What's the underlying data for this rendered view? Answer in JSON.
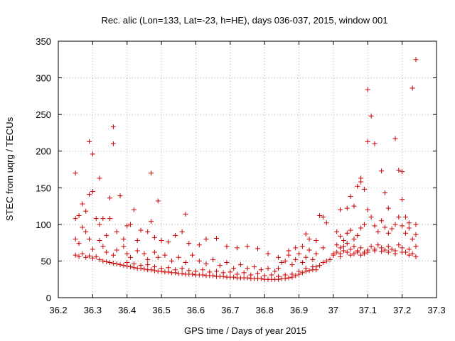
{
  "chart_data": {
    "type": "scatter",
    "title": "Rec. alic (Lon=133, Lat=-23, h=HE), days 036-037, 2015, window 001",
    "xlabel": "GPS time / Days of year 2015",
    "ylabel": "STEC from uqrg / TECUs",
    "xlim": [
      36.2,
      37.3
    ],
    "ylim": [
      0,
      350
    ],
    "xticks": [
      36.2,
      36.3,
      36.4,
      36.5,
      36.6,
      36.7,
      36.8,
      36.9,
      37.0,
      37.1,
      37.2,
      37.3
    ],
    "xtick_labels": [
      "36.2",
      "36.3",
      "36.4",
      "36.5",
      "36.6",
      "36.7",
      "36.8",
      "36.9",
      "37",
      "37.1",
      "37.2",
      "37.3"
    ],
    "yticks": [
      0,
      50,
      100,
      150,
      200,
      250,
      300,
      350
    ],
    "ytick_labels": [
      "0",
      "50",
      "100",
      "150",
      "200",
      "250",
      "300",
      "350"
    ],
    "grid": true,
    "marker": "+",
    "color": "#cc0000",
    "points": [
      [
        36.25,
        170
      ],
      [
        36.27,
        128
      ],
      [
        36.29,
        213
      ],
      [
        36.3,
        196
      ],
      [
        36.32,
        163
      ],
      [
        36.33,
        108
      ],
      [
        36.35,
        136
      ],
      [
        36.36,
        233
      ],
      [
        36.36,
        210
      ],
      [
        36.38,
        139
      ],
      [
        36.42,
        120
      ],
      [
        36.47,
        170
      ],
      [
        36.49,
        132
      ],
      [
        36.57,
        114
      ],
      [
        36.25,
        108
      ],
      [
        36.26,
        112
      ],
      [
        36.27,
        96
      ],
      [
        36.28,
        118
      ],
      [
        36.29,
        141
      ],
      [
        36.3,
        145
      ],
      [
        36.31,
        108
      ],
      [
        36.32,
        100
      ],
      [
        36.34,
        85
      ],
      [
        36.35,
        108
      ],
      [
        36.37,
        90
      ],
      [
        36.39,
        80
      ],
      [
        36.4,
        98
      ],
      [
        36.41,
        100
      ],
      [
        36.43,
        78
      ],
      [
        36.44,
        92
      ],
      [
        36.46,
        90
      ],
      [
        36.47,
        104
      ],
      [
        36.48,
        82
      ],
      [
        36.5,
        78
      ],
      [
        36.52,
        76
      ],
      [
        36.54,
        85
      ],
      [
        36.56,
        90
      ],
      [
        36.58,
        74
      ],
      [
        36.61,
        72
      ],
      [
        36.63,
        80
      ],
      [
        36.66,
        81
      ],
      [
        36.69,
        70
      ],
      [
        36.72,
        68
      ],
      [
        36.75,
        70
      ],
      [
        36.78,
        67
      ],
      [
        36.81,
        60
      ],
      [
        36.84,
        55
      ],
      [
        36.25,
        80
      ],
      [
        36.26,
        74
      ],
      [
        36.28,
        90
      ],
      [
        36.29,
        80
      ],
      [
        36.3,
        66
      ],
      [
        36.32,
        78
      ],
      [
        36.33,
        70
      ],
      [
        36.34,
        62
      ],
      [
        36.36,
        58
      ],
      [
        36.37,
        65
      ],
      [
        36.39,
        70
      ],
      [
        36.4,
        60
      ],
      [
        36.41,
        55
      ],
      [
        36.43,
        64
      ],
      [
        36.45,
        60
      ],
      [
        36.46,
        52
      ],
      [
        36.48,
        62
      ],
      [
        36.49,
        55
      ],
      [
        36.51,
        58
      ],
      [
        36.53,
        50
      ],
      [
        36.55,
        55
      ],
      [
        36.57,
        48
      ],
      [
        36.59,
        58
      ],
      [
        36.61,
        50
      ],
      [
        36.63,
        46
      ],
      [
        36.65,
        52
      ],
      [
        36.67,
        44
      ],
      [
        36.69,
        48
      ],
      [
        36.71,
        40
      ],
      [
        36.73,
        45
      ],
      [
        36.75,
        40
      ],
      [
        36.77,
        42
      ],
      [
        36.79,
        38
      ],
      [
        36.81,
        40
      ],
      [
        36.83,
        36
      ],
      [
        36.25,
        58
      ],
      [
        36.26,
        56
      ],
      [
        36.27,
        60
      ],
      [
        36.28,
        55
      ],
      [
        36.29,
        57
      ],
      [
        36.3,
        54
      ],
      [
        36.31,
        56
      ],
      [
        36.32,
        52
      ],
      [
        36.33,
        50
      ],
      [
        36.34,
        49
      ],
      [
        36.35,
        48
      ],
      [
        36.36,
        47
      ],
      [
        36.37,
        46
      ],
      [
        36.38,
        45
      ],
      [
        36.39,
        44
      ],
      [
        36.4,
        43
      ],
      [
        36.41,
        42
      ],
      [
        36.42,
        41
      ],
      [
        36.43,
        40
      ],
      [
        36.44,
        40
      ],
      [
        36.45,
        39
      ],
      [
        36.46,
        38
      ],
      [
        36.47,
        38
      ],
      [
        36.48,
        37
      ],
      [
        36.49,
        36
      ],
      [
        36.5,
        36
      ],
      [
        36.51,
        35
      ],
      [
        36.52,
        35
      ],
      [
        36.53,
        34
      ],
      [
        36.54,
        34
      ],
      [
        36.55,
        33
      ],
      [
        36.56,
        33
      ],
      [
        36.57,
        32
      ],
      [
        36.58,
        32
      ],
      [
        36.59,
        32
      ],
      [
        36.6,
        31
      ],
      [
        36.61,
        31
      ],
      [
        36.62,
        31
      ],
      [
        36.63,
        30
      ],
      [
        36.64,
        30
      ],
      [
        36.65,
        30
      ],
      [
        36.66,
        29
      ],
      [
        36.67,
        29
      ],
      [
        36.68,
        29
      ],
      [
        36.69,
        28
      ],
      [
        36.7,
        28
      ],
      [
        36.71,
        28
      ],
      [
        36.72,
        27
      ],
      [
        36.73,
        27
      ],
      [
        36.74,
        27
      ],
      [
        36.75,
        27
      ],
      [
        36.76,
        26
      ],
      [
        36.77,
        26
      ],
      [
        36.78,
        26
      ],
      [
        36.79,
        26
      ],
      [
        36.8,
        25
      ],
      [
        36.81,
        25
      ],
      [
        36.82,
        25
      ],
      [
        36.83,
        25
      ],
      [
        36.84,
        25
      ],
      [
        36.85,
        26
      ],
      [
        36.86,
        26
      ],
      [
        36.87,
        27
      ],
      [
        36.88,
        28
      ],
      [
        36.89,
        30
      ],
      [
        36.9,
        32
      ],
      [
        36.91,
        34
      ],
      [
        36.92,
        36
      ],
      [
        36.93,
        37
      ],
      [
        36.94,
        38
      ],
      [
        36.95,
        38
      ],
      [
        36.4,
        48
      ],
      [
        36.42,
        46
      ],
      [
        36.44,
        44
      ],
      [
        36.46,
        45
      ],
      [
        36.48,
        42
      ],
      [
        36.5,
        40
      ],
      [
        36.52,
        41
      ],
      [
        36.54,
        38
      ],
      [
        36.56,
        40
      ],
      [
        36.58,
        37
      ],
      [
        36.6,
        36
      ],
      [
        36.62,
        38
      ],
      [
        36.64,
        35
      ],
      [
        36.66,
        36
      ],
      [
        36.68,
        34
      ],
      [
        36.7,
        35
      ],
      [
        36.72,
        32
      ],
      [
        36.74,
        34
      ],
      [
        36.76,
        31
      ],
      [
        36.78,
        33
      ],
      [
        36.8,
        30
      ],
      [
        36.82,
        31
      ],
      [
        36.84,
        29
      ],
      [
        36.86,
        31
      ],
      [
        36.88,
        32
      ],
      [
        36.9,
        36
      ],
      [
        36.92,
        40
      ],
      [
        36.94,
        42
      ],
      [
        36.84,
        40
      ],
      [
        36.85,
        48
      ],
      [
        36.86,
        50
      ],
      [
        36.87,
        58
      ],
      [
        36.88,
        45
      ],
      [
        36.89,
        52
      ],
      [
        36.9,
        60
      ],
      [
        36.91,
        48
      ],
      [
        36.92,
        55
      ],
      [
        36.93,
        65
      ],
      [
        36.94,
        52
      ],
      [
        36.95,
        60
      ],
      [
        36.96,
        112
      ],
      [
        36.97,
        110
      ],
      [
        36.98,
        102
      ],
      [
        36.93,
        80
      ],
      [
        36.92,
        87
      ],
      [
        36.95,
        78
      ],
      [
        36.97,
        68
      ],
      [
        36.91,
        70
      ],
      [
        36.89,
        68
      ],
      [
        36.87,
        64
      ],
      [
        37.02,
        120
      ],
      [
        37.04,
        122
      ],
      [
        37.05,
        138
      ],
      [
        37.06,
        125
      ],
      [
        37.07,
        152
      ],
      [
        37.08,
        163
      ],
      [
        37.08,
        158
      ],
      [
        37.09,
        148
      ],
      [
        37.1,
        284
      ],
      [
        37.1,
        213
      ],
      [
        37.11,
        248
      ],
      [
        37.12,
        210
      ],
      [
        37.14,
        173
      ],
      [
        37.15,
        143
      ],
      [
        37.16,
        122
      ],
      [
        37.18,
        217
      ],
      [
        37.19,
        174
      ],
      [
        37.2,
        172
      ],
      [
        37.2,
        134
      ],
      [
        37.21,
        110
      ],
      [
        37.23,
        286
      ],
      [
        37.24,
        325
      ],
      [
        37.22,
        102
      ],
      [
        37.24,
        100
      ],
      [
        37.01,
        90
      ],
      [
        37.02,
        84
      ],
      [
        37.03,
        78
      ],
      [
        37.04,
        88
      ],
      [
        37.05,
        92
      ],
      [
        37.06,
        80
      ],
      [
        37.07,
        85
      ],
      [
        37.08,
        95
      ],
      [
        37.09,
        100
      ],
      [
        37.1,
        120
      ],
      [
        37.11,
        110
      ],
      [
        37.12,
        98
      ],
      [
        37.13,
        90
      ],
      [
        37.14,
        105
      ],
      [
        37.15,
        96
      ],
      [
        37.16,
        88
      ],
      [
        37.17,
        94
      ],
      [
        37.18,
        100
      ],
      [
        37.19,
        110
      ],
      [
        37.2,
        98
      ],
      [
        37.21,
        88
      ],
      [
        37.22,
        95
      ],
      [
        37.23,
        80
      ],
      [
        37.24,
        86
      ],
      [
        37.01,
        72
      ],
      [
        37.02,
        68
      ],
      [
        37.03,
        70
      ],
      [
        37.04,
        74
      ],
      [
        37.05,
        66
      ],
      [
        37.06,
        70
      ],
      [
        37.07,
        64
      ],
      [
        37.08,
        68
      ],
      [
        37.09,
        62
      ],
      [
        37.1,
        65
      ],
      [
        37.11,
        70
      ],
      [
        37.12,
        66
      ],
      [
        37.13,
        72
      ],
      [
        37.14,
        68
      ],
      [
        37.15,
        65
      ],
      [
        37.16,
        70
      ],
      [
        37.17,
        66
      ],
      [
        37.18,
        64
      ],
      [
        37.19,
        72
      ],
      [
        37.2,
        68
      ],
      [
        37.21,
        62
      ],
      [
        37.22,
        66
      ],
      [
        37.23,
        60
      ],
      [
        37.24,
        70
      ],
      [
        37.0,
        58
      ],
      [
        37.01,
        62
      ],
      [
        37.02,
        60
      ],
      [
        37.03,
        64
      ],
      [
        37.04,
        62
      ],
      [
        37.05,
        58
      ],
      [
        37.06,
        60
      ],
      [
        37.07,
        62
      ],
      [
        37.08,
        58
      ],
      [
        37.09,
        60
      ],
      [
        37.1,
        62
      ],
      [
        37.12,
        64
      ],
      [
        37.14,
        63
      ],
      [
        37.16,
        62
      ],
      [
        37.18,
        60
      ],
      [
        37.2,
        62
      ],
      [
        37.22,
        58
      ],
      [
        37.24,
        56
      ],
      [
        36.98,
        50
      ],
      [
        36.99,
        52
      ],
      [
        37.0,
        60
      ],
      [
        37.02,
        56
      ],
      [
        36.97,
        48
      ],
      [
        36.96,
        44
      ],
      [
        36.95,
        42
      ]
    ]
  }
}
